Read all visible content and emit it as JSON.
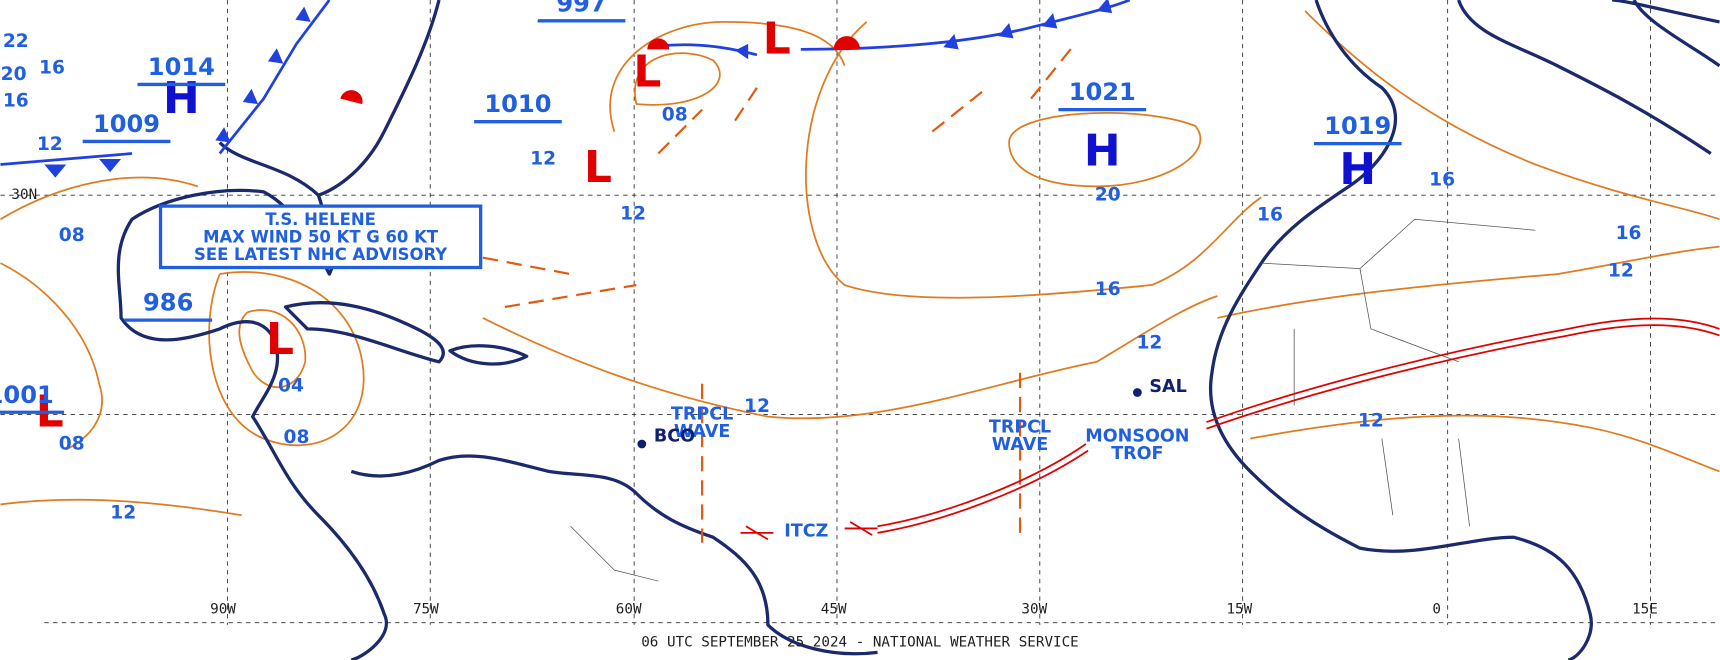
{
  "map": {
    "footer": "06 UTC SEPTEMBER 25 2024 - NATIONAL WEATHER SERVICE",
    "longitudes": [
      "90W",
      "75W",
      "60W",
      "45W",
      "30W",
      "15W",
      "0",
      "15E"
    ],
    "latitudes": [
      "30N"
    ],
    "pressure_centers": [
      {
        "letter": "H",
        "pressure": "1021"
      },
      {
        "letter": "H",
        "pressure": "1019"
      },
      {
        "letter": "H",
        "pressure": "1014"
      },
      {
        "letter": "L",
        "pressure": "1010"
      },
      {
        "letter": "L",
        "pressure": "997"
      },
      {
        "letter": "L",
        "pressure": "1009"
      },
      {
        "letter": "L",
        "pressure": "986"
      },
      {
        "letter": "L",
        "pressure": "1001"
      }
    ],
    "isobar_labels": [
      "08",
      "12",
      "12",
      "20",
      "16",
      "12",
      "12",
      "16",
      "16",
      "16",
      "12",
      "12",
      "04",
      "08",
      "08",
      "12",
      "08",
      "16",
      "12",
      "22",
      "20",
      "16"
    ],
    "storm_box": [
      "T.S. HELENE",
      "MAX WIND 50 KT G 60 KT",
      "SEE LATEST NHC ADVISORY"
    ],
    "features": [
      [
        "TRPCL",
        "WAVE"
      ],
      [
        "TRPCL",
        "WAVE"
      ],
      [
        "ITCZ"
      ],
      [
        "MONSOON",
        "TROF"
      ],
      [
        "SAL"
      ],
      [
        "BCO"
      ]
    ]
  }
}
